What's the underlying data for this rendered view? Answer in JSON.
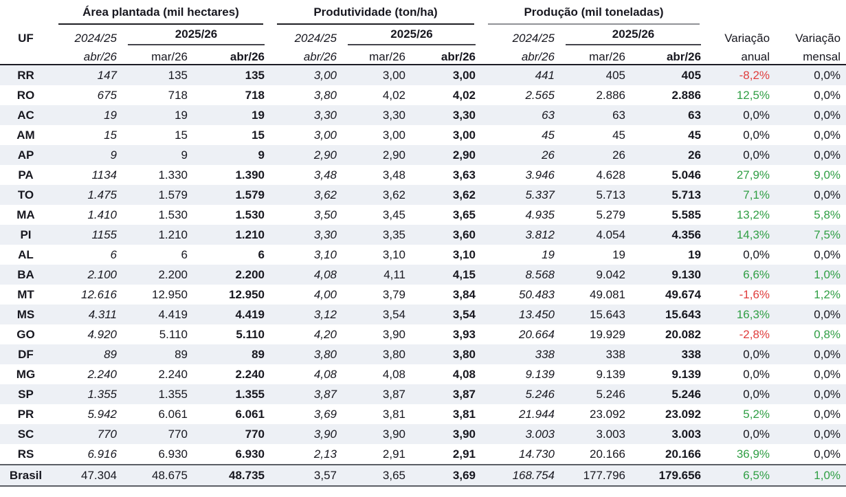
{
  "chart_data": {
    "type": "table",
    "groups": [
      {
        "title": "Área plantada (mil hectares)"
      },
      {
        "title": "Produtividade (ton/ha)"
      },
      {
        "title": "Produção (mil toneladas)"
      }
    ],
    "header": {
      "uf": "UF",
      "prev_season": "2024/25",
      "curr_season": "2025/26",
      "prev_month": "abr/26",
      "month1": "mar/26",
      "month2": "abr/26",
      "var_annual_line1": "Variação",
      "var_annual_line2": "anual",
      "var_monthly_line1": "Variação",
      "var_monthly_line2": "mensal"
    },
    "colors": {
      "positive_green": "#2f9e44",
      "negative_red": "#e03c3c",
      "stripe": "#edf0f5",
      "text": "#17171f"
    },
    "rows": [
      {
        "uf": "RR",
        "area": [
          "147",
          "135",
          "135"
        ],
        "yield": [
          "3,00",
          "3,00",
          "3,00"
        ],
        "output": [
          "441",
          "405",
          "405"
        ],
        "var_annual": "-8,2%",
        "var_annual_sign": "neg",
        "var_monthly": "0,0%",
        "var_monthly_sign": "zero"
      },
      {
        "uf": "RO",
        "area": [
          "675",
          "718",
          "718"
        ],
        "yield": [
          "3,80",
          "4,02",
          "4,02"
        ],
        "output": [
          "2.565",
          "2.886",
          "2.886"
        ],
        "var_annual": "12,5%",
        "var_annual_sign": "pos",
        "var_monthly": "0,0%",
        "var_monthly_sign": "zero"
      },
      {
        "uf": "AC",
        "area": [
          "19",
          "19",
          "19"
        ],
        "yield": [
          "3,30",
          "3,30",
          "3,30"
        ],
        "output": [
          "63",
          "63",
          "63"
        ],
        "var_annual": "0,0%",
        "var_annual_sign": "zero",
        "var_monthly": "0,0%",
        "var_monthly_sign": "zero"
      },
      {
        "uf": "AM",
        "area": [
          "15",
          "15",
          "15"
        ],
        "yield": [
          "3,00",
          "3,00",
          "3,00"
        ],
        "output": [
          "45",
          "45",
          "45"
        ],
        "var_annual": "0,0%",
        "var_annual_sign": "zero",
        "var_monthly": "0,0%",
        "var_monthly_sign": "zero"
      },
      {
        "uf": "AP",
        "area": [
          "9",
          "9",
          "9"
        ],
        "yield": [
          "2,90",
          "2,90",
          "2,90"
        ],
        "output": [
          "26",
          "26",
          "26"
        ],
        "var_annual": "0,0%",
        "var_annual_sign": "zero",
        "var_monthly": "0,0%",
        "var_monthly_sign": "zero"
      },
      {
        "uf": "PA",
        "area": [
          "1134",
          "1.330",
          "1.390"
        ],
        "yield": [
          "3,48",
          "3,48",
          "3,63"
        ],
        "output": [
          "3.946",
          "4.628",
          "5.046"
        ],
        "var_annual": "27,9%",
        "var_annual_sign": "pos",
        "var_monthly": "9,0%",
        "var_monthly_sign": "pos"
      },
      {
        "uf": "TO",
        "area": [
          "1.475",
          "1.579",
          "1.579"
        ],
        "yield": [
          "3,62",
          "3,62",
          "3,62"
        ],
        "output": [
          "5.337",
          "5.713",
          "5.713"
        ],
        "var_annual": "7,1%",
        "var_annual_sign": "pos",
        "var_monthly": "0,0%",
        "var_monthly_sign": "zero"
      },
      {
        "uf": "MA",
        "area": [
          "1.410",
          "1.530",
          "1.530"
        ],
        "yield": [
          "3,50",
          "3,45",
          "3,65"
        ],
        "output": [
          "4.935",
          "5.279",
          "5.585"
        ],
        "var_annual": "13,2%",
        "var_annual_sign": "pos",
        "var_monthly": "5,8%",
        "var_monthly_sign": "pos"
      },
      {
        "uf": "PI",
        "area": [
          "1155",
          "1.210",
          "1.210"
        ],
        "yield": [
          "3,30",
          "3,35",
          "3,60"
        ],
        "output": [
          "3.812",
          "4.054",
          "4.356"
        ],
        "var_annual": "14,3%",
        "var_annual_sign": "pos",
        "var_monthly": "7,5%",
        "var_monthly_sign": "pos"
      },
      {
        "uf": "AL",
        "area": [
          "6",
          "6",
          "6"
        ],
        "yield": [
          "3,10",
          "3,10",
          "3,10"
        ],
        "output": [
          "19",
          "19",
          "19"
        ],
        "var_annual": "0,0%",
        "var_annual_sign": "zero",
        "var_monthly": "0,0%",
        "var_monthly_sign": "zero"
      },
      {
        "uf": "BA",
        "area": [
          "2.100",
          "2.200",
          "2.200"
        ],
        "yield": [
          "4,08",
          "4,11",
          "4,15"
        ],
        "output": [
          "8.568",
          "9.042",
          "9.130"
        ],
        "var_annual": "6,6%",
        "var_annual_sign": "pos",
        "var_monthly": "1,0%",
        "var_monthly_sign": "pos"
      },
      {
        "uf": "MT",
        "area": [
          "12.616",
          "12.950",
          "12.950"
        ],
        "yield": [
          "4,00",
          "3,79",
          "3,84"
        ],
        "output": [
          "50.483",
          "49.081",
          "49.674"
        ],
        "var_annual": "-1,6%",
        "var_annual_sign": "neg",
        "var_monthly": "1,2%",
        "var_monthly_sign": "pos"
      },
      {
        "uf": "MS",
        "area": [
          "4.311",
          "4.419",
          "4.419"
        ],
        "yield": [
          "3,12",
          "3,54",
          "3,54"
        ],
        "output": [
          "13.450",
          "15.643",
          "15.643"
        ],
        "var_annual": "16,3%",
        "var_annual_sign": "pos",
        "var_monthly": "0,0%",
        "var_monthly_sign": "zero"
      },
      {
        "uf": "GO",
        "area": [
          "4.920",
          "5.110",
          "5.110"
        ],
        "yield": [
          "4,20",
          "3,90",
          "3,93"
        ],
        "output": [
          "20.664",
          "19.929",
          "20.082"
        ],
        "var_annual": "-2,8%",
        "var_annual_sign": "neg",
        "var_monthly": "0,8%",
        "var_monthly_sign": "pos"
      },
      {
        "uf": "DF",
        "area": [
          "89",
          "89",
          "89"
        ],
        "yield": [
          "3,80",
          "3,80",
          "3,80"
        ],
        "output": [
          "338",
          "338",
          "338"
        ],
        "var_annual": "0,0%",
        "var_annual_sign": "zero",
        "var_monthly": "0,0%",
        "var_monthly_sign": "zero"
      },
      {
        "uf": "MG",
        "area": [
          "2.240",
          "2.240",
          "2.240"
        ],
        "yield": [
          "4,08",
          "4,08",
          "4,08"
        ],
        "output": [
          "9.139",
          "9.139",
          "9.139"
        ],
        "var_annual": "0,0%",
        "var_annual_sign": "zero",
        "var_monthly": "0,0%",
        "var_monthly_sign": "zero"
      },
      {
        "uf": "SP",
        "area": [
          "1.355",
          "1.355",
          "1.355"
        ],
        "yield": [
          "3,87",
          "3,87",
          "3,87"
        ],
        "output": [
          "5.246",
          "5.246",
          "5.246"
        ],
        "var_annual": "0,0%",
        "var_annual_sign": "zero",
        "var_monthly": "0,0%",
        "var_monthly_sign": "zero"
      },
      {
        "uf": "PR",
        "area": [
          "5.942",
          "6.061",
          "6.061"
        ],
        "yield": [
          "3,69",
          "3,81",
          "3,81"
        ],
        "output": [
          "21.944",
          "23.092",
          "23.092"
        ],
        "var_annual": "5,2%",
        "var_annual_sign": "pos",
        "var_monthly": "0,0%",
        "var_monthly_sign": "zero"
      },
      {
        "uf": "SC",
        "area": [
          "770",
          "770",
          "770"
        ],
        "yield": [
          "3,90",
          "3,90",
          "3,90"
        ],
        "output": [
          "3.003",
          "3.003",
          "3.003"
        ],
        "var_annual": "0,0%",
        "var_annual_sign": "zero",
        "var_monthly": "0,0%",
        "var_monthly_sign": "zero"
      },
      {
        "uf": "RS",
        "area": [
          "6.916",
          "6.930",
          "6.930"
        ],
        "yield": [
          "2,13",
          "2,91",
          "2,91"
        ],
        "output": [
          "14.730",
          "20.166",
          "20.166"
        ],
        "var_annual": "36,9%",
        "var_annual_sign": "pos",
        "var_monthly": "0,0%",
        "var_monthly_sign": "zero"
      }
    ],
    "total": {
      "uf": "Brasil",
      "area": [
        "47.304",
        "48.675",
        "48.735"
      ],
      "yield": [
        "3,57",
        "3,65",
        "3,69"
      ],
      "output": [
        "168.754",
        "177.796",
        "179.656"
      ],
      "var_annual": "6,5%",
      "var_annual_sign": "pos",
      "var_monthly": "1,0%",
      "var_monthly_sign": "pos"
    }
  }
}
